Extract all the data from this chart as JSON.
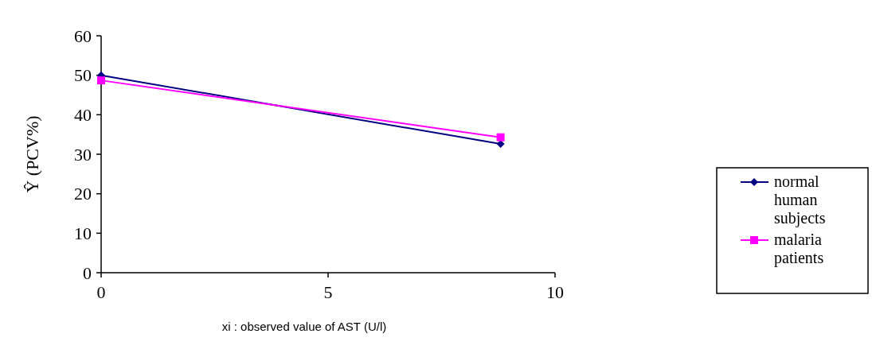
{
  "chart_data": {
    "type": "line",
    "xlabel": "xi : observed value of AST (U/l)",
    "ylabel": "Ŷ (PCV%)",
    "x": [
      0,
      8.8
    ],
    "xlim": [
      0,
      10
    ],
    "xticks": [
      0,
      5,
      10
    ],
    "ylim": [
      0,
      60
    ],
    "yticks": [
      0,
      10,
      20,
      30,
      40,
      50,
      60
    ],
    "grid": false,
    "legend": "right",
    "series": [
      {
        "name": "normal human subjects",
        "color": "#000080",
        "marker": "diamond",
        "values": [
          50,
          32.6
        ]
      },
      {
        "name": "malaria patients",
        "color": "#ff00ff",
        "marker": "square",
        "values": [
          48.7,
          34.3
        ]
      }
    ]
  }
}
